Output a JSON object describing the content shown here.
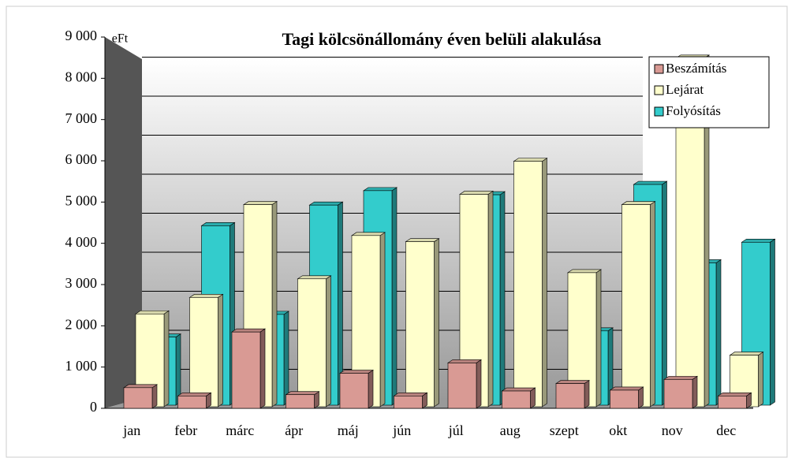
{
  "chart_data": {
    "type": "bar3d",
    "title": "Tagi kölcsönállomány éven belüli alakulása",
    "unit_label": "eFt",
    "categories": [
      "jan",
      "febr",
      "márc",
      "ápr",
      "máj",
      "jún",
      "júl",
      "aug",
      "szept",
      "okt",
      "nov",
      "dec"
    ],
    "series": [
      {
        "name": "Beszámítás",
        "color": "#d99a94",
        "values": [
          500,
          300,
          1850,
          330,
          850,
          300,
          1100,
          420,
          600,
          440,
          700,
          300
        ]
      },
      {
        "name": "Lejárat",
        "color": "#ffffcc",
        "values": [
          2250,
          2650,
          4900,
          3100,
          4150,
          4000,
          5150,
          5950,
          3250,
          4900,
          8450,
          1250
        ]
      },
      {
        "name": "Folyósítás",
        "color": "#33cccc",
        "values": [
          1650,
          4350,
          2200,
          4850,
          5200,
          0,
          5100,
          0,
          1800,
          5350,
          3450,
          3950
        ]
      }
    ],
    "ylim": [
      0,
      9000
    ],
    "yticks": [
      {
        "value": 0,
        "label": "0"
      },
      {
        "value": 1000,
        "label": "1 000"
      },
      {
        "value": 2000,
        "label": "2 000"
      },
      {
        "value": 3000,
        "label": "3 000"
      },
      {
        "value": 4000,
        "label": "4 000"
      },
      {
        "value": 5000,
        "label": "5 000"
      },
      {
        "value": 6000,
        "label": "6 000"
      },
      {
        "value": 7000,
        "label": "7 000"
      },
      {
        "value": 8000,
        "label": "8 000"
      },
      {
        "value": 9000,
        "label": "9 000"
      }
    ],
    "grid": true,
    "legend": "top-right"
  }
}
